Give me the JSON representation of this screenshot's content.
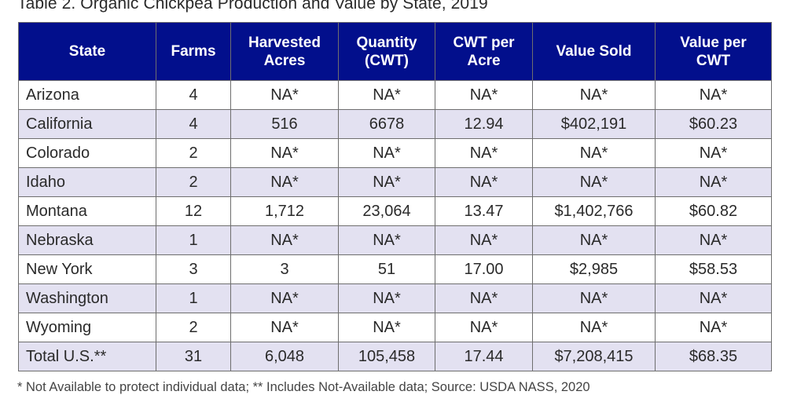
{
  "title": "Table 2. Organic Chickpea Production and Value by State, 2019",
  "colors": {
    "header_bg": "#020f8c",
    "stripe_bg": "#e3e1f1"
  },
  "table": {
    "headers": [
      "State",
      "Farms",
      "Harvested Acres",
      "Quantity (CWT)",
      "CWT per Acre",
      "Value Sold",
      "Value per CWT"
    ],
    "rows": [
      [
        "Arizona",
        "4",
        "NA*",
        "NA*",
        "NA*",
        "NA*",
        "NA*"
      ],
      [
        "California",
        "4",
        "516",
        "6678",
        "12.94",
        "$402,191",
        "$60.23"
      ],
      [
        "Colorado",
        "2",
        "NA*",
        "NA*",
        "NA*",
        "NA*",
        "NA*"
      ],
      [
        "Idaho",
        "2",
        "NA*",
        "NA*",
        "NA*",
        "NA*",
        "NA*"
      ],
      [
        "Montana",
        "12",
        "1,712",
        "23,064",
        "13.47",
        "$1,402,766",
        "$60.82"
      ],
      [
        "Nebraska",
        "1",
        "NA*",
        "NA*",
        "NA*",
        "NA*",
        "NA*"
      ],
      [
        "New York",
        "3",
        "3",
        "51",
        "17.00",
        "$2,985",
        "$58.53"
      ],
      [
        "Washington",
        "1",
        "NA*",
        "NA*",
        "NA*",
        "NA*",
        "NA*"
      ],
      [
        "Wyoming",
        "2",
        "NA*",
        "NA*",
        "NA*",
        "NA*",
        "NA*"
      ],
      [
        "Total U.S.**",
        "31",
        "6,048",
        "105,458",
        "17.44",
        "$7,208,415",
        "$68.35"
      ]
    ]
  },
  "footnote": "* Not Available to protect individual data;  ** Includes Not-Available data;  Source: USDA NASS, 2020"
}
